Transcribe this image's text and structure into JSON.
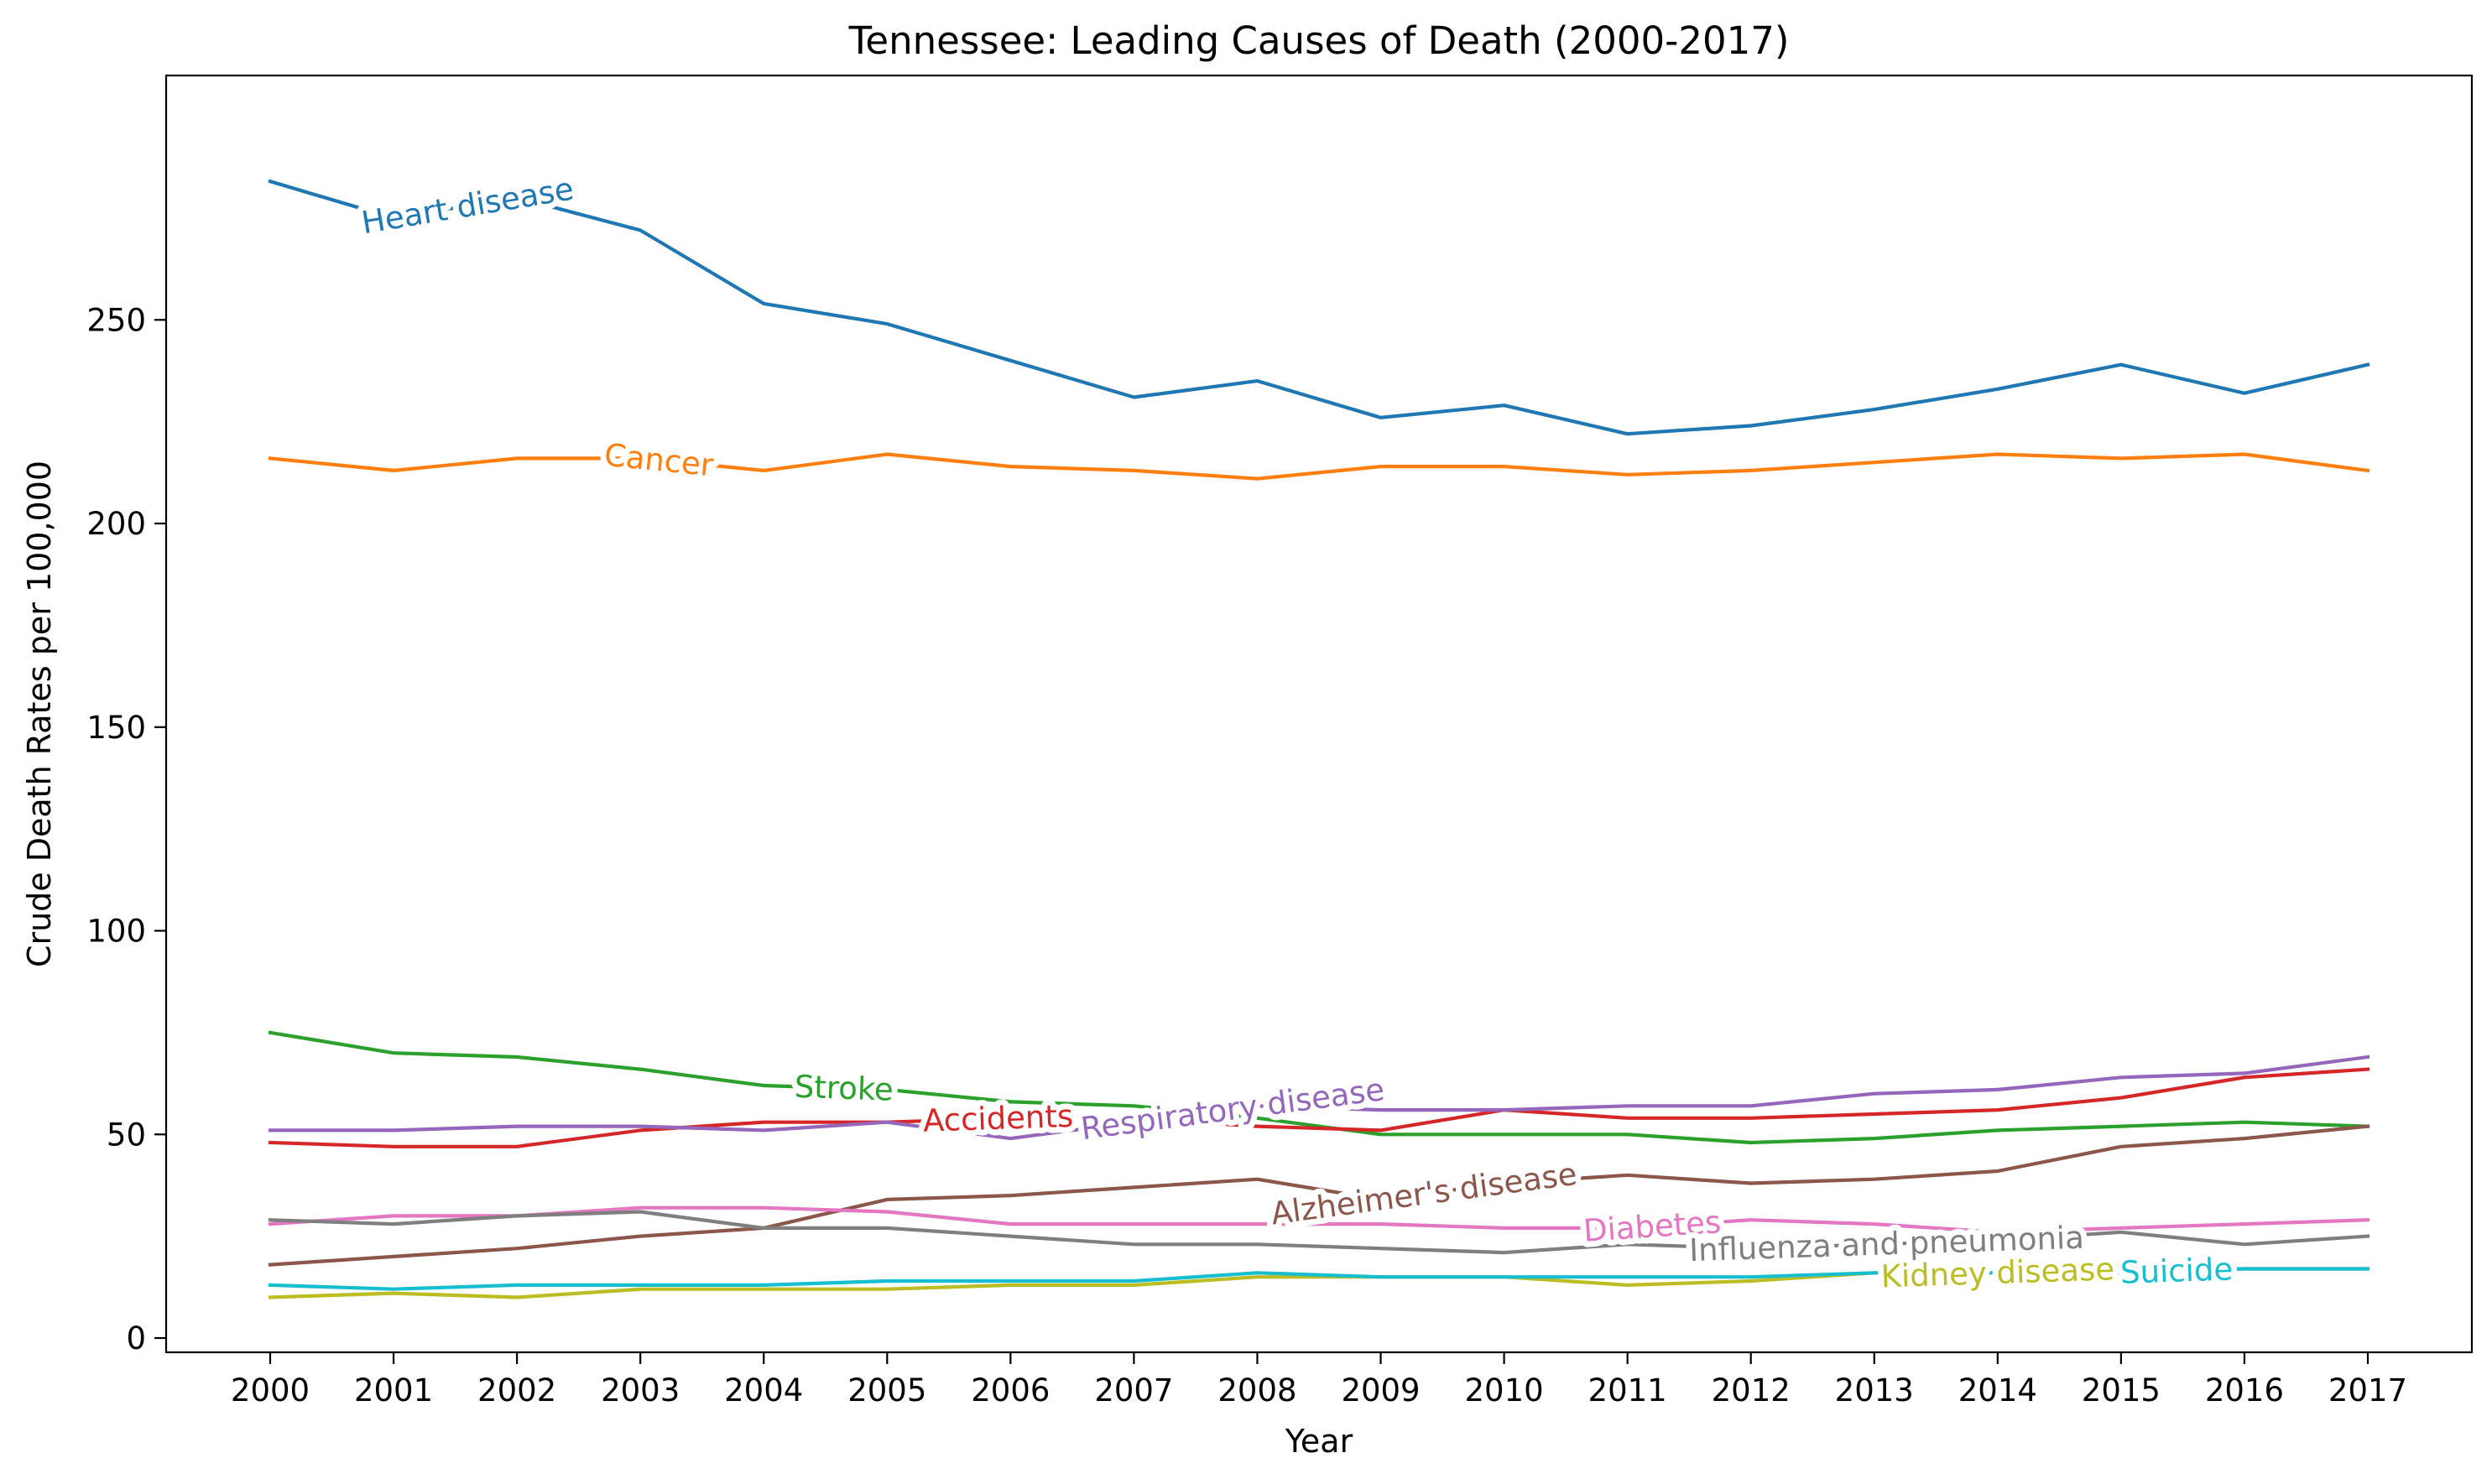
{
  "chart_data": {
    "type": "line",
    "title": "Tennessee: Leading Causes of Death (2000-2017)",
    "xlabel": "Year",
    "ylabel": "Crude Death Rates per 100,000",
    "categories": [
      "2000",
      "2001",
      "2002",
      "2003",
      "2004",
      "2005",
      "2006",
      "2007",
      "2008",
      "2009",
      "2010",
      "2011",
      "2012",
      "2013",
      "2014",
      "2015",
      "2016",
      "2017"
    ],
    "yticks": [
      0,
      50,
      100,
      150,
      200,
      250
    ],
    "ylim": [
      -3.5,
      310
    ],
    "grid": false,
    "legend": "inline labels",
    "series": [
      {
        "name": "Heart disease",
        "color": "#1f77b4",
        "values": [
          284,
          275,
          280,
          272,
          254,
          249,
          240,
          231,
          235,
          226,
          229,
          222,
          224,
          228,
          233,
          239,
          232,
          239
        ]
      },
      {
        "name": "Cancer",
        "color": "#ff7f0e",
        "values": [
          216,
          213,
          216,
          216,
          213,
          217,
          214,
          213,
          211,
          214,
          214,
          212,
          213,
          215,
          217,
          216,
          217,
          213
        ]
      },
      {
        "name": "Stroke",
        "color": "#2ca02c",
        "values": [
          75,
          70,
          69,
          66,
          62,
          61,
          58,
          57,
          54,
          50,
          50,
          50,
          48,
          49,
          51,
          52,
          53,
          52
        ]
      },
      {
        "name": "Accidents",
        "color": "#d62728",
        "values": [
          48,
          47,
          47,
          51,
          53,
          53,
          54,
          54,
          52,
          51,
          56,
          54,
          54,
          55,
          56,
          59,
          64,
          66
        ]
      },
      {
        "name": "Respiratory disease",
        "color": "#9467bd",
        "values": [
          51,
          51,
          52,
          52,
          51,
          53,
          49,
          53,
          57,
          56,
          56,
          57,
          57,
          60,
          61,
          64,
          65,
          69
        ]
      },
      {
        "name": "Alzheimer's disease",
        "color": "#8c564b",
        "values": [
          18,
          20,
          22,
          25,
          27,
          34,
          35,
          37,
          39,
          34,
          38,
          40,
          38,
          39,
          41,
          47,
          49,
          52
        ]
      },
      {
        "name": "Diabetes",
        "color": "#e377c2",
        "values": [
          28,
          30,
          30,
          32,
          32,
          31,
          28,
          28,
          28,
          28,
          27,
          27,
          29,
          28,
          26,
          27,
          28,
          29
        ]
      },
      {
        "name": "Influenza and pneumonia",
        "color": "#7f7f7f",
        "values": [
          29,
          28,
          30,
          31,
          27,
          27,
          25,
          23,
          23,
          22,
          21,
          23,
          22,
          23,
          24,
          26,
          23,
          25
        ]
      },
      {
        "name": "Kidney disease",
        "color": "#bcbd22",
        "values": [
          10,
          11,
          10,
          12,
          12,
          12,
          13,
          13,
          15,
          15,
          15,
          13,
          14,
          16,
          16,
          17,
          17,
          17
        ]
      },
      {
        "name": "Suicide",
        "color": "#17becf",
        "values": [
          13,
          12,
          13,
          13,
          13,
          14,
          14,
          14,
          16,
          15,
          15,
          15,
          15,
          16,
          16,
          16,
          17,
          17
        ]
      }
    ]
  }
}
